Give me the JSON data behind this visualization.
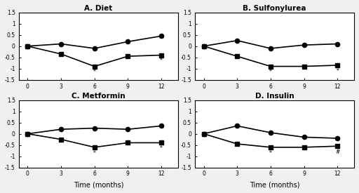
{
  "panels": [
    {
      "title": "A. Diet",
      "circle": [
        0.0,
        0.1,
        -0.1,
        0.2,
        0.45
      ],
      "square": [
        0.0,
        -0.35,
        -0.9,
        -0.45,
        -0.4
      ],
      "ann6": "*",
      "ann12": "*",
      "ann6_y": -1.02,
      "ann12_y": -0.52
    },
    {
      "title": "B. Sulfonylurea",
      "circle": [
        0.0,
        0.25,
        -0.1,
        0.05,
        0.1
      ],
      "square": [
        0.0,
        -0.45,
        -0.9,
        -0.9,
        -0.85
      ],
      "ann6": "*",
      "ann12": "*",
      "ann6_y": -1.02,
      "ann12_y": -0.97
    },
    {
      "title": "C. Metformin",
      "circle": [
        0.0,
        0.2,
        0.25,
        0.2,
        0.35
      ],
      "square": [
        0.0,
        -0.25,
        -0.6,
        -0.4,
        -0.4
      ],
      "ann6": "*",
      "ann12": "*",
      "ann6_y": -0.72,
      "ann12_y": -0.52
    },
    {
      "title": "D. Insulin",
      "circle": [
        0.0,
        0.35,
        0.05,
        -0.15,
        -0.2
      ],
      "square": [
        0.0,
        -0.45,
        -0.6,
        -0.6,
        -0.55
      ],
      "ann6": "*",
      "ann12": "#",
      "ann6_y": -0.72,
      "ann12_y": -0.67
    }
  ],
  "x": [
    0,
    3,
    6,
    9,
    12
  ],
  "ylim": [
    -1.5,
    1.5
  ],
  "yticks": [
    -1.5,
    -1.0,
    -0.5,
    0.0,
    0.5,
    1.0,
    1.5
  ],
  "yticklabels": [
    "-1.5",
    "-1",
    "-0.5",
    "0",
    "0.5",
    "1",
    "1.5"
  ],
  "xticks": [
    0,
    3,
    6,
    9,
    12
  ],
  "xlabel": "Time (months)",
  "line_color": "#000000",
  "bg_color": "#f0f0f0",
  "panel_bg": "#ffffff",
  "linewidth": 1.2,
  "markersize": 4.5,
  "title_fontsize": 7.5,
  "tick_fontsize": 5.5,
  "xlabel_fontsize": 7,
  "ann_fontsize": 5.5
}
